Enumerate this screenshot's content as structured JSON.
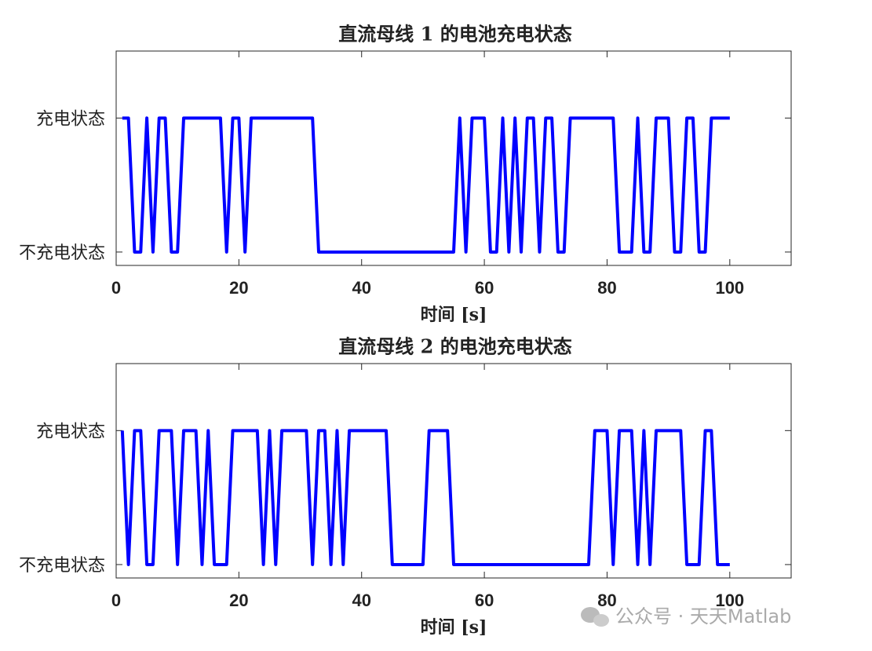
{
  "chart_data": [
    {
      "type": "line",
      "title": "直流母线 1 的电池充电状态",
      "xlabel": "时间 [s]",
      "color": "#0000ff",
      "x": [
        1,
        2,
        3,
        4,
        5,
        6,
        7,
        8,
        9,
        10,
        11,
        12,
        13,
        14,
        15,
        16,
        17,
        18,
        19,
        20,
        21,
        22,
        23,
        24,
        25,
        26,
        27,
        28,
        29,
        30,
        31,
        32,
        33,
        34,
        35,
        36,
        37,
        38,
        39,
        40,
        41,
        42,
        43,
        44,
        45,
        46,
        47,
        48,
        49,
        50,
        51,
        52,
        53,
        54,
        55,
        56,
        57,
        58,
        59,
        60,
        61,
        62,
        63,
        64,
        65,
        66,
        67,
        68,
        69,
        70,
        71,
        72,
        73,
        74,
        75,
        76,
        77,
        78,
        79,
        80,
        81,
        82,
        83,
        84,
        85,
        86,
        87,
        88,
        89,
        90,
        91,
        92,
        93,
        94,
        95,
        96,
        97,
        98,
        99,
        100
      ],
      "values": [
        1,
        1,
        0,
        0,
        1,
        0,
        1,
        1,
        0,
        0,
        1,
        1,
        1,
        1,
        1,
        1,
        1,
        0,
        1,
        1,
        0,
        1,
        1,
        1,
        1,
        1,
        1,
        1,
        1,
        1,
        1,
        1,
        0,
        0,
        0,
        0,
        0,
        0,
        0,
        0,
        0,
        0,
        0,
        0,
        0,
        0,
        0,
        0,
        0,
        0,
        0,
        0,
        0,
        0,
        0,
        1,
        0,
        1,
        1,
        1,
        0,
        0,
        1,
        0,
        1,
        0,
        1,
        1,
        0,
        1,
        1,
        0,
        0,
        1,
        1,
        1,
        1,
        1,
        1,
        1,
        1,
        0,
        0,
        0,
        1,
        0,
        0,
        1,
        1,
        1,
        0,
        0,
        1,
        1,
        0,
        0,
        1,
        1,
        1,
        1
      ],
      "xlim": [
        0,
        110
      ],
      "xticks": [
        0,
        20,
        40,
        60,
        80,
        100
      ],
      "ylim": [
        -0.1,
        1.5
      ],
      "yticks": [
        {
          "value": 0,
          "label": "不充电状态"
        },
        {
          "value": 1,
          "label": "充电状态"
        }
      ]
    },
    {
      "type": "line",
      "title": "直流母线 2 的电池充电状态",
      "xlabel": "时间 [s]",
      "color": "#0000ff",
      "x": [
        1,
        2,
        3,
        4,
        5,
        6,
        7,
        8,
        9,
        10,
        11,
        12,
        13,
        14,
        15,
        16,
        17,
        18,
        19,
        20,
        21,
        22,
        23,
        24,
        25,
        26,
        27,
        28,
        29,
        30,
        31,
        32,
        33,
        34,
        35,
        36,
        37,
        38,
        39,
        40,
        41,
        42,
        43,
        44,
        45,
        46,
        47,
        48,
        49,
        50,
        51,
        52,
        53,
        54,
        55,
        56,
        57,
        58,
        59,
        60,
        61,
        62,
        63,
        64,
        65,
        66,
        67,
        68,
        69,
        70,
        71,
        72,
        73,
        74,
        75,
        76,
        77,
        78,
        79,
        80,
        81,
        82,
        83,
        84,
        85,
        86,
        87,
        88,
        89,
        90,
        91,
        92,
        93,
        94,
        95,
        96,
        97,
        98,
        99,
        100
      ],
      "values": [
        1,
        0,
        1,
        1,
        0,
        0,
        1,
        1,
        1,
        0,
        1,
        1,
        1,
        0,
        1,
        0,
        0,
        0,
        1,
        1,
        1,
        1,
        1,
        0,
        1,
        0,
        1,
        1,
        1,
        1,
        1,
        0,
        1,
        1,
        0,
        1,
        0,
        1,
        1,
        1,
        1,
        1,
        1,
        1,
        0,
        0,
        0,
        0,
        0,
        0,
        1,
        1,
        1,
        1,
        0,
        0,
        0,
        0,
        0,
        0,
        0,
        0,
        0,
        0,
        0,
        0,
        0,
        0,
        0,
        0,
        0,
        0,
        0,
        0,
        0,
        0,
        0,
        1,
        1,
        1,
        0,
        1,
        1,
        1,
        0,
        1,
        0,
        1,
        1,
        1,
        1,
        1,
        0,
        0,
        0,
        1,
        1,
        0,
        0,
        0
      ],
      "xlim": [
        0,
        110
      ],
      "xticks": [
        0,
        20,
        40,
        60,
        80,
        100
      ],
      "ylim": [
        -0.1,
        1.5
      ],
      "yticks": [
        {
          "value": 0,
          "label": "不充电状态"
        },
        {
          "value": 1,
          "label": "充电状态"
        }
      ]
    }
  ],
  "watermark": "公众号 · 天天Matlab"
}
